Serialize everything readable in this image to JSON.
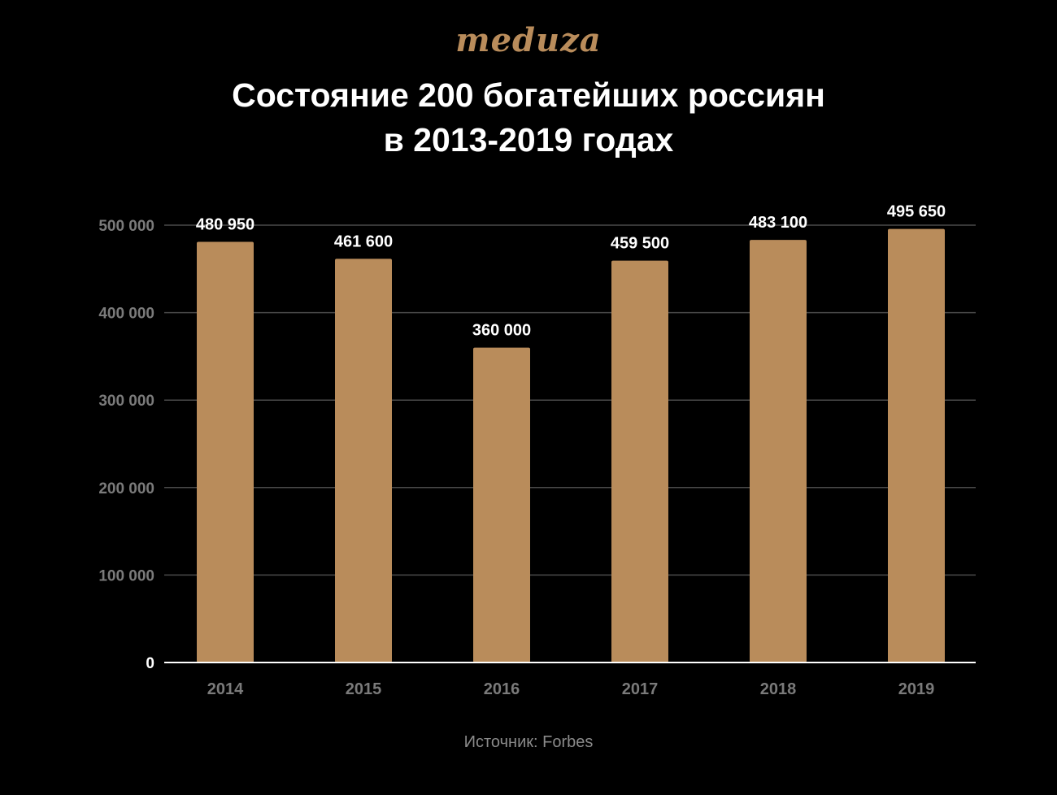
{
  "logo": "meduza",
  "title_line1": "Состояние 200 богатейших россиян",
  "title_line2": "в 2013-2019 годах",
  "source": "Источник: Forbes",
  "colors": {
    "background": "#000000",
    "bar": "#b98c5b",
    "title": "#ffffff",
    "axis_label": "#7a7a7a",
    "gridline": "#4a4a4a",
    "baseline": "#ffffff",
    "data_label": "#ffffff"
  },
  "chart_data": {
    "type": "bar",
    "categories": [
      "2014",
      "2015",
      "2016",
      "2017",
      "2018",
      "2019"
    ],
    "values": [
      480950,
      461600,
      360000,
      459500,
      483100,
      495650
    ],
    "value_labels": [
      "480 950",
      "461 600",
      "360 000",
      "459 500",
      "483 100",
      "495 650"
    ],
    "ylim": [
      0,
      500000
    ],
    "yticks": [
      0,
      100000,
      200000,
      300000,
      400000,
      500000
    ],
    "ytick_labels": [
      "0",
      "100 000",
      "200 000",
      "300 000",
      "400 000",
      "500 000"
    ],
    "title": "Состояние 200 богатейших россиян в 2013-2019 годах",
    "xlabel": "",
    "ylabel": "",
    "grid": true,
    "legend": "none"
  }
}
